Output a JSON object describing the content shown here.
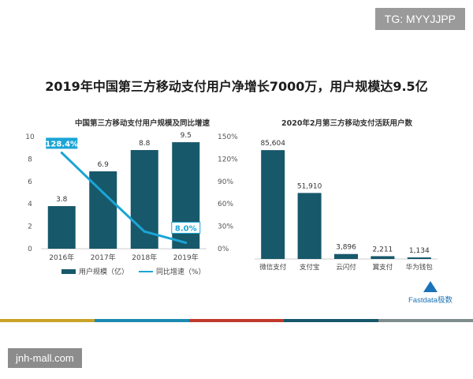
{
  "overlays": {
    "top_right": "TG: MYYJJPP",
    "bottom_left": "jnh-mall.com"
  },
  "main_title": "2019年中国第三方移动支付用户净增长7000万，用户规模达9.5亿",
  "brand": "Fastdata极数",
  "colors": {
    "bar": "#17586b",
    "line": "#1aa5d6",
    "callout": "#1aa5d6",
    "strip": [
      "#c9a227",
      "#1b8ab0",
      "#c0392b",
      "#17586b",
      "#7f8c8d"
    ]
  },
  "chart_data": [
    {
      "type": "bar+line",
      "title": "中国第三方移动支付用户规模及同比增速",
      "categories": [
        "2016年",
        "2017年",
        "2018年",
        "2019年"
      ],
      "series": [
        {
          "name": "用户规模（亿）",
          "type": "bar",
          "axis": "left",
          "values": [
            3.8,
            6.9,
            8.8,
            9.5
          ],
          "labels": [
            "3.8",
            "6.9",
            "8.8",
            "9.5"
          ]
        },
        {
          "name": "同比增速（%）",
          "type": "line",
          "axis": "right",
          "values": [
            128.4,
            75,
            23,
            8.0
          ]
        }
      ],
      "callouts": [
        {
          "index": 0,
          "text": "128.4%"
        },
        {
          "index": 3,
          "text": "8.0%"
        }
      ],
      "y_left": {
        "ylim": [
          0,
          10
        ],
        "ticks": [
          "0",
          "2",
          "4",
          "6",
          "8",
          "10"
        ]
      },
      "y_right": {
        "ylim": [
          0,
          150
        ],
        "ticks": [
          "0%",
          "30%",
          "60%",
          "90%",
          "120%",
          "150%"
        ]
      },
      "grid": false,
      "legend_position": "bottom"
    },
    {
      "type": "bar",
      "title": "2020年2月第三方移动支付活跃用户数",
      "categories": [
        "微信支付",
        "支付宝",
        "云闪付",
        "翼支付",
        "华为钱包"
      ],
      "values": [
        85604,
        51910,
        3896,
        2211,
        1134
      ],
      "labels": [
        "85,604",
        "51,910",
        "3,896",
        "2,211",
        "1,134"
      ],
      "ylim": [
        0,
        95000
      ],
      "grid": false
    }
  ]
}
